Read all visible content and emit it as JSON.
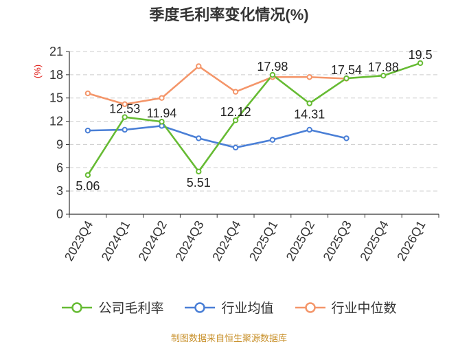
{
  "chart_data": {
    "type": "line",
    "title": "季度毛利率变化情况(%)",
    "ylabel": "(%)",
    "ylim": [
      0,
      21
    ],
    "yticks": [
      0,
      3,
      6,
      9,
      12,
      15,
      18,
      21
    ],
    "grid": true,
    "legend_position": "bottom",
    "categories": [
      "2023Q4",
      "2024Q1",
      "2024Q2",
      "2024Q3",
      "2024Q4",
      "2025Q1",
      "2025Q2",
      "2025Q3",
      "2025Q4",
      "2026Q1"
    ],
    "series": [
      {
        "name": "公司毛利率",
        "color": "#66bb33",
        "values": [
          5.06,
          12.53,
          11.94,
          5.51,
          12.12,
          17.98,
          14.31,
          17.54,
          17.88,
          19.5
        ],
        "labels": [
          "5.06",
          "12.53",
          "11.94",
          "5.51",
          "12.12",
          "17.98",
          "14.31",
          "17.54",
          "17.88",
          "19.5"
        ]
      },
      {
        "name": "行业均值",
        "color": "#4a7fd6",
        "values": [
          10.8,
          10.9,
          11.4,
          9.8,
          8.6,
          9.6,
          10.9,
          9.8,
          null,
          null
        ]
      },
      {
        "name": "行业中位数",
        "color": "#f4966a",
        "values": [
          15.6,
          14.2,
          15.0,
          19.1,
          15.8,
          17.7,
          17.7,
          17.5,
          null,
          null
        ]
      }
    ],
    "source": "制图数据来自恒生聚源数据库"
  }
}
